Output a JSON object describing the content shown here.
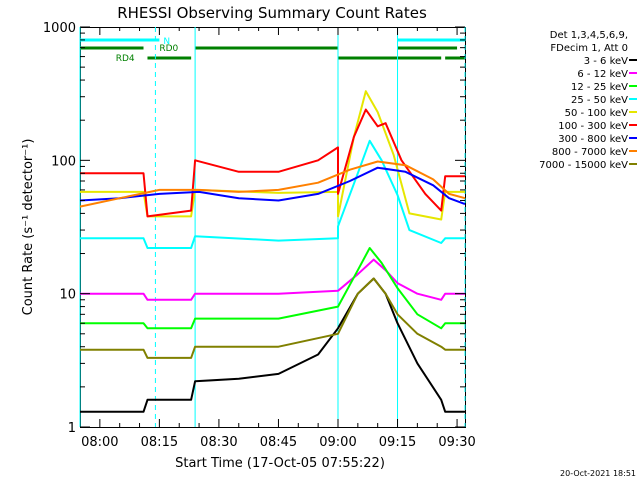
{
  "chart_data": {
    "type": "line",
    "title": "RHESSI Observing Summary Count Rates",
    "xlabel": "Start Time (17-Oct-05 07:55:22)",
    "ylabel": "Count Rate (s⁻¹ detector⁻¹)",
    "y_scale": "log",
    "ylim": [
      1,
      1000
    ],
    "xlim": [
      "07:55",
      "09:32"
    ],
    "x_ticks": [
      "08:00",
      "08:15",
      "08:30",
      "08:45",
      "09:00",
      "09:15",
      "09:30"
    ],
    "y_ticks": [
      "1",
      "10",
      "100",
      "1000"
    ],
    "grid": false,
    "legend_header": [
      "Det 1,3,4,5,6,9,",
      "FDecim 1, Att 0"
    ],
    "timestamp": "20-Oct-2021 18:51",
    "flags": [
      {
        "label": "N",
        "color": "#00ffff",
        "segments": [
          [
            "07:55",
            "08:15"
          ],
          [
            "09:15",
            "09:32"
          ]
        ]
      },
      {
        "label": "RD0",
        "color": "#008000",
        "segments": [
          [
            "07:55",
            "08:11"
          ],
          [
            "08:24",
            "09:00"
          ],
          [
            "09:15",
            "09:30"
          ]
        ]
      },
      {
        "label": "RD4",
        "color": "#008000",
        "segments": [
          [
            "08:12",
            "08:23"
          ],
          [
            "09:00",
            "09:26"
          ],
          [
            "09:27",
            "09:32"
          ]
        ]
      }
    ],
    "markers": {
      "solid_cyan": [
        "07:55",
        "08:24",
        "09:00",
        "09:15"
      ],
      "dashed_cyan": [
        "08:14",
        "09:32"
      ]
    },
    "series": [
      {
        "name": "3 - 6 keV",
        "color": "#000000",
        "points": [
          [
            "07:55",
            1.3
          ],
          [
            "08:11",
            1.3
          ],
          [
            "08:12",
            1.6
          ],
          [
            "08:23",
            1.6
          ],
          [
            "08:24",
            2.2
          ],
          [
            "08:35",
            2.3
          ],
          [
            "08:45",
            2.5
          ],
          [
            "08:55",
            3.5
          ],
          [
            "09:00",
            5.5
          ],
          [
            "09:05",
            10
          ],
          [
            "09:09",
            13
          ],
          [
            "09:12",
            10
          ],
          [
            "09:15",
            6
          ],
          [
            "09:20",
            3
          ],
          [
            "09:26",
            1.6
          ],
          [
            "09:27",
            1.3
          ],
          [
            "09:32",
            1.3
          ]
        ]
      },
      {
        "name": "6 - 12 keV",
        "color": "#ff00ff",
        "points": [
          [
            "07:55",
            10
          ],
          [
            "08:11",
            10
          ],
          [
            "08:12",
            9
          ],
          [
            "08:23",
            9
          ],
          [
            "08:24",
            10
          ],
          [
            "08:45",
            10
          ],
          [
            "09:00",
            10.5
          ],
          [
            "09:05",
            14
          ],
          [
            "09:09",
            18
          ],
          [
            "09:12",
            15
          ],
          [
            "09:15",
            12
          ],
          [
            "09:20",
            10
          ],
          [
            "09:26",
            9
          ],
          [
            "09:27",
            10
          ],
          [
            "09:32",
            10
          ]
        ]
      },
      {
        "name": "12 - 25 keV",
        "color": "#00ff00",
        "points": [
          [
            "07:55",
            6
          ],
          [
            "08:11",
            6
          ],
          [
            "08:12",
            5.5
          ],
          [
            "08:23",
            5.5
          ],
          [
            "08:24",
            6.5
          ],
          [
            "08:45",
            6.5
          ],
          [
            "09:00",
            8
          ],
          [
            "09:05",
            15
          ],
          [
            "09:08",
            22
          ],
          [
            "09:11",
            17
          ],
          [
            "09:15",
            11
          ],
          [
            "09:20",
            7
          ],
          [
            "09:26",
            5.5
          ],
          [
            "09:27",
            6
          ],
          [
            "09:32",
            6
          ]
        ]
      },
      {
        "name": "25 - 50 keV",
        "color": "#00ffff",
        "points": [
          [
            "07:55",
            26
          ],
          [
            "08:11",
            26
          ],
          [
            "08:12",
            22
          ],
          [
            "08:23",
            22
          ],
          [
            "08:24",
            27
          ],
          [
            "08:45",
            25
          ],
          [
            "09:00",
            26
          ],
          [
            "09:00",
            32
          ],
          [
            "09:05",
            80
          ],
          [
            "09:08",
            140
          ],
          [
            "09:11",
            100
          ],
          [
            "09:15",
            55
          ],
          [
            "09:18",
            30
          ],
          [
            "09:26",
            24
          ],
          [
            "09:27",
            26
          ],
          [
            "09:32",
            26
          ]
        ]
      },
      {
        "name": "50 - 100 keV",
        "color": "#e6e600",
        "points": [
          [
            "07:55",
            58
          ],
          [
            "08:11",
            58
          ],
          [
            "08:12",
            38
          ],
          [
            "08:23",
            38
          ],
          [
            "08:24",
            60
          ],
          [
            "08:45",
            57
          ],
          [
            "09:00",
            58
          ],
          [
            "09:00",
            38
          ],
          [
            "09:04",
            150
          ],
          [
            "09:07",
            330
          ],
          [
            "09:10",
            230
          ],
          [
            "09:14",
            110
          ],
          [
            "09:18",
            40
          ],
          [
            "09:26",
            36
          ],
          [
            "09:27",
            58
          ],
          [
            "09:32",
            58
          ]
        ]
      },
      {
        "name": "100 - 300 keV",
        "color": "#ff0000",
        "points": [
          [
            "07:55",
            80
          ],
          [
            "08:11",
            80
          ],
          [
            "08:12",
            38
          ],
          [
            "08:23",
            42
          ],
          [
            "08:24",
            100
          ],
          [
            "08:35",
            82
          ],
          [
            "08:45",
            82
          ],
          [
            "08:55",
            100
          ],
          [
            "09:00",
            125
          ],
          [
            "09:00",
            56
          ],
          [
            "09:04",
            150
          ],
          [
            "09:07",
            240
          ],
          [
            "09:10",
            180
          ],
          [
            "09:12",
            190
          ],
          [
            "09:16",
            100
          ],
          [
            "09:22",
            56
          ],
          [
            "09:26",
            42
          ],
          [
            "09:27",
            76
          ],
          [
            "09:32",
            76
          ]
        ]
      },
      {
        "name": "300 - 800 keV",
        "color": "#0000ff",
        "points": [
          [
            "07:55",
            50
          ],
          [
            "08:05",
            52
          ],
          [
            "08:15",
            56
          ],
          [
            "08:25",
            58
          ],
          [
            "08:35",
            52
          ],
          [
            "08:45",
            50
          ],
          [
            "08:55",
            56
          ],
          [
            "09:03",
            70
          ],
          [
            "09:10",
            88
          ],
          [
            "09:17",
            82
          ],
          [
            "09:24",
            65
          ],
          [
            "09:28",
            52
          ],
          [
            "09:32",
            47
          ]
        ]
      },
      {
        "name": "800 - 7000 keV",
        "color": "#ff8000",
        "points": [
          [
            "07:55",
            45
          ],
          [
            "08:05",
            52
          ],
          [
            "08:15",
            60
          ],
          [
            "08:25",
            60
          ],
          [
            "08:35",
            58
          ],
          [
            "08:45",
            60
          ],
          [
            "08:55",
            68
          ],
          [
            "09:03",
            85
          ],
          [
            "09:10",
            98
          ],
          [
            "09:17",
            92
          ],
          [
            "09:24",
            72
          ],
          [
            "09:28",
            56
          ],
          [
            "09:32",
            52
          ]
        ]
      },
      {
        "name": "7000 - 15000 keV",
        "color": "#808000",
        "points": [
          [
            "07:55",
            3.8
          ],
          [
            "08:11",
            3.8
          ],
          [
            "08:12",
            3.3
          ],
          [
            "08:23",
            3.3
          ],
          [
            "08:24",
            4
          ],
          [
            "08:45",
            4
          ],
          [
            "09:00",
            5
          ],
          [
            "09:05",
            10
          ],
          [
            "09:09",
            13
          ],
          [
            "09:12",
            10
          ],
          [
            "09:15",
            7
          ],
          [
            "09:20",
            5
          ],
          [
            "09:26",
            4
          ],
          [
            "09:27",
            3.8
          ],
          [
            "09:32",
            3.8
          ]
        ]
      }
    ]
  }
}
